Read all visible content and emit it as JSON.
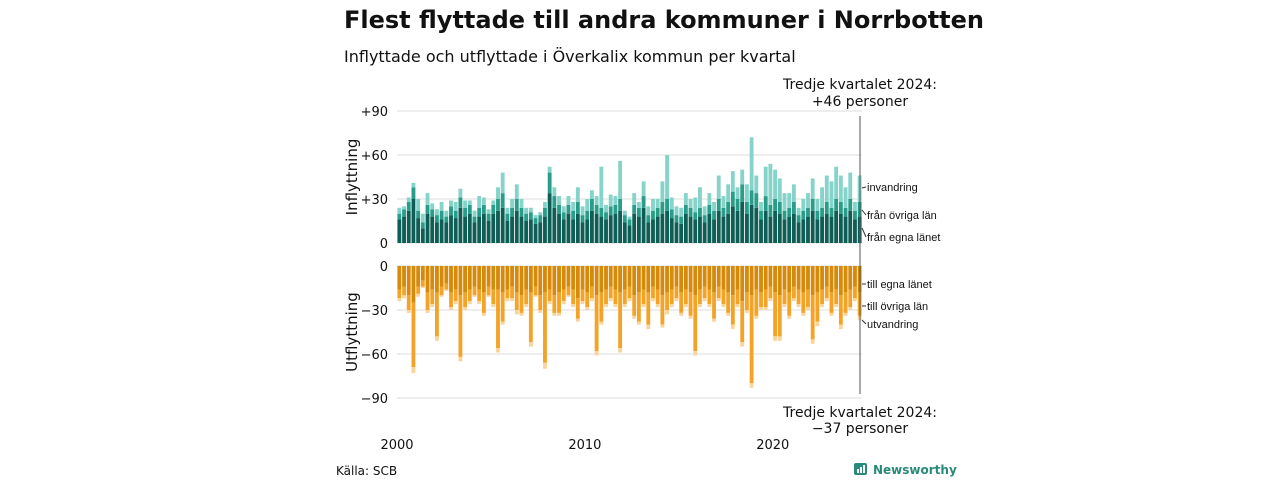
{
  "header": {
    "title": "Flest flyttade till andra kommuner i Norrbotten",
    "subtitle": "Inflyttade och utflyttade i Överkalix kommun per kvartal"
  },
  "annotations": {
    "top_line1": "Tredje kvartalet 2024:",
    "top_line2": "+46 personer",
    "bottom_line1": "Tredje kvartalet 2024:",
    "bottom_line2": "−37 personer"
  },
  "footer": {
    "source": "Källa: SCB",
    "brand": "Newsworthy"
  },
  "colors": {
    "in_egna": "#0f5e56",
    "in_ovriga": "#2a9d8a",
    "in_invandring": "#86d3c9",
    "ut_egna": "#d68a0b",
    "ut_ovriga": "#f3a428",
    "ut_utvandring": "#fbd49a"
  },
  "chart_data": [
    {
      "type": "bar",
      "stacked": true,
      "ylabel": "Inflyttning",
      "ylim": [
        0,
        90
      ],
      "yticks": [
        0,
        30,
        60,
        90
      ],
      "ytick_labels": [
        "0",
        "+30",
        "+60",
        "+90"
      ],
      "xlim": [
        "2000-Q1",
        "2024-Q3"
      ],
      "xticks": [
        "2000",
        "2010",
        "2020"
      ],
      "quarters": 99,
      "series": [
        {
          "name": "från egna länet",
          "values": [
            16,
            18,
            22,
            30,
            17,
            10,
            20,
            18,
            14,
            16,
            14,
            19,
            17,
            24,
            18,
            20,
            14,
            18,
            20,
            15,
            20,
            22,
            24,
            15,
            18,
            22,
            18,
            15,
            16,
            13,
            14,
            18,
            34,
            24,
            20,
            16,
            20,
            16,
            20,
            14,
            16,
            22,
            20,
            18,
            16,
            19,
            20,
            22,
            14,
            12,
            20,
            18,
            24,
            14,
            16,
            18,
            20,
            22,
            17,
            14,
            13,
            20,
            18,
            16,
            18,
            14,
            20,
            16,
            22,
            18,
            20,
            25,
            22,
            28,
            20,
            26,
            24,
            16,
            22,
            18,
            22,
            20,
            16,
            18,
            20,
            14,
            16,
            18,
            22,
            16,
            18,
            20,
            18,
            22,
            20,
            18,
            22,
            16,
            18
          ]
        },
        {
          "name": "från övriga län",
          "values": [
            4,
            5,
            6,
            8,
            5,
            4,
            6,
            5,
            5,
            6,
            4,
            6,
            5,
            7,
            6,
            6,
            4,
            6,
            6,
            5,
            6,
            8,
            10,
            5,
            6,
            8,
            6,
            5,
            5,
            4,
            5,
            6,
            14,
            8,
            6,
            5,
            6,
            6,
            8,
            5,
            6,
            8,
            6,
            6,
            5,
            6,
            6,
            8,
            5,
            4,
            6,
            6,
            8,
            5,
            6,
            6,
            8,
            8,
            6,
            5,
            5,
            6,
            6,
            5,
            6,
            5,
            6,
            6,
            8,
            6,
            8,
            10,
            8,
            12,
            8,
            10,
            10,
            6,
            10,
            8,
            8,
            8,
            6,
            6,
            8,
            5,
            6,
            6,
            8,
            6,
            6,
            8,
            6,
            8,
            8,
            6,
            8,
            6,
            10
          ]
        },
        {
          "name": "invandring",
          "values": [
            4,
            2,
            3,
            3,
            8,
            6,
            8,
            4,
            4,
            6,
            4,
            4,
            6,
            6,
            5,
            3,
            4,
            8,
            5,
            3,
            3,
            8,
            14,
            4,
            6,
            10,
            6,
            4,
            3,
            2,
            2,
            4,
            4,
            6,
            6,
            4,
            6,
            6,
            10,
            6,
            8,
            6,
            6,
            28,
            5,
            8,
            6,
            26,
            3,
            2,
            8,
            4,
            10,
            6,
            8,
            6,
            14,
            30,
            8,
            6,
            6,
            8,
            6,
            10,
            14,
            6,
            8,
            6,
            16,
            8,
            12,
            14,
            8,
            10,
            12,
            36,
            12,
            6,
            20,
            28,
            20,
            16,
            12,
            10,
            12,
            5,
            8,
            10,
            14,
            8,
            14,
            18,
            18,
            22,
            18,
            14,
            18,
            6,
            18
          ]
        }
      ]
    },
    {
      "type": "bar",
      "stacked": true,
      "ylabel": "Utflyttning",
      "ylim": [
        -90,
        0
      ],
      "yticks": [
        0,
        -30,
        -60,
        -90
      ],
      "ytick_labels": [
        "0",
        "−30",
        "−60",
        "−90"
      ],
      "xlim": [
        "2000-Q1",
        "2024-Q3"
      ],
      "xticks": [
        "2000",
        "2010",
        "2020"
      ],
      "quarters": 99,
      "series": [
        {
          "name": "till egna länet",
          "values": [
            -16,
            -14,
            -20,
            -25,
            -14,
            -10,
            -18,
            -16,
            -18,
            -14,
            -12,
            -18,
            -16,
            -20,
            -18,
            -16,
            -14,
            -16,
            -18,
            -14,
            -16,
            -16,
            -18,
            -16,
            -14,
            -18,
            -20,
            -16,
            -18,
            -14,
            -20,
            -18,
            -16,
            -20,
            -18,
            -16,
            -14,
            -16,
            -22,
            -16,
            -18,
            -14,
            -20,
            -18,
            -16,
            -14,
            -16,
            -18,
            -16,
            -14,
            -20,
            -18,
            -16,
            -18,
            -14,
            -16,
            -20,
            -18,
            -16,
            -14,
            -18,
            -16,
            -18,
            -20,
            -16,
            -14,
            -16,
            -18,
            -14,
            -16,
            -18,
            -20,
            -16,
            -24,
            -18,
            -20,
            -16,
            -18,
            -16,
            -14,
            -18,
            -20,
            -16,
            -18,
            -14,
            -16,
            -18,
            -16,
            -20,
            -18,
            -16,
            -14,
            -18,
            -16,
            -20,
            -18,
            -16,
            -14,
            -18
          ]
        },
        {
          "name": "till övriga län",
          "values": [
            -6,
            -6,
            -10,
            -44,
            -5,
            -4,
            -12,
            -10,
            -30,
            -6,
            -4,
            -10,
            -8,
            -42,
            -10,
            -8,
            -6,
            -8,
            -14,
            -6,
            -10,
            -40,
            -20,
            -6,
            -8,
            -12,
            -12,
            -10,
            -34,
            -6,
            -10,
            -48,
            -8,
            -12,
            -14,
            -8,
            -6,
            -10,
            -14,
            -8,
            -10,
            -8,
            -38,
            -20,
            -10,
            -8,
            -10,
            -38,
            -10,
            -8,
            -14,
            -20,
            -10,
            -22,
            -8,
            -10,
            -20,
            -12,
            -10,
            -8,
            -14,
            -10,
            -16,
            -38,
            -10,
            -8,
            -10,
            -18,
            -8,
            -10,
            -14,
            -20,
            -10,
            -28,
            -12,
            -60,
            -18,
            -10,
            -12,
            -8,
            -30,
            -28,
            -10,
            -16,
            -8,
            -10,
            -14,
            -12,
            -30,
            -20,
            -10,
            -8,
            -14,
            -10,
            -20,
            -14,
            -12,
            -8,
            -16
          ]
        },
        {
          "name": "utvandring",
          "values": [
            -2,
            -2,
            -2,
            -4,
            -2,
            -1,
            -2,
            -2,
            -3,
            -1,
            -1,
            -2,
            -2,
            -3,
            -2,
            -2,
            -1,
            -2,
            -2,
            -1,
            -2,
            -3,
            -2,
            -2,
            -2,
            -3,
            -2,
            -2,
            -3,
            -1,
            -2,
            -4,
            -2,
            -2,
            -2,
            -2,
            -1,
            -2,
            -2,
            -2,
            -2,
            -2,
            -3,
            -2,
            -2,
            -2,
            -2,
            -3,
            -2,
            -2,
            -2,
            -2,
            -2,
            -3,
            -2,
            -2,
            -2,
            -3,
            -2,
            -2,
            -2,
            -2,
            -2,
            -3,
            -2,
            -2,
            -2,
            -2,
            -2,
            -2,
            -2,
            -3,
            -2,
            -3,
            -2,
            -3,
            -2,
            -2,
            -2,
            -2,
            -3,
            -3,
            -2,
            -2,
            -2,
            -2,
            -2,
            -2,
            -3,
            -3,
            -2,
            -2,
            -2,
            -2,
            -3,
            -2,
            -2,
            -2,
            -3
          ]
        }
      ]
    }
  ]
}
